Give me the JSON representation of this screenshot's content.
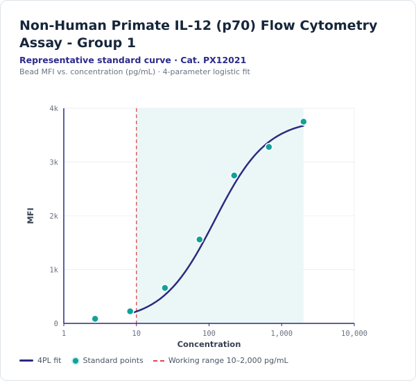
{
  "header": {
    "title": "Non-Human Primate IL-12 (p70) Flow Cytometry Assay - Group 1",
    "subtitle": "Representative standard curve · Cat. PX12021",
    "description": "Bead MFI vs. concentration (pg/mL) · 4-parameter logistic fit"
  },
  "colors": {
    "fit_line": "#2c2a80",
    "points": "#12a19a",
    "working_range_fill": "#e8f6f6",
    "lloq_line": "#d94a4a"
  },
  "chart_data": {
    "type": "scatter",
    "xlabel": "Concentration",
    "ylabel": "MFI",
    "x_scale": "log",
    "xlim": [
      1,
      10000
    ],
    "ylim": [
      0,
      4000
    ],
    "x_ticks": [
      1,
      10,
      100,
      1000,
      10000
    ],
    "x_tick_labels": [
      "1",
      "10",
      "100",
      "1,000",
      "10,000"
    ],
    "y_ticks": [
      0,
      1000,
      2000,
      3000,
      4000
    ],
    "y_tick_labels": [
      "0",
      "1k",
      "2k",
      "3k",
      "4k"
    ],
    "grid": true,
    "legend_position": "bottom-left",
    "series": [
      {
        "name": "Standard points",
        "x": [
          2.7,
          8.2,
          24.7,
          74,
          222,
          667,
          2000
        ],
        "y": [
          85,
          225,
          660,
          1560,
          2750,
          3280,
          3750
        ]
      }
    ],
    "fit": {
      "name": "4PL fit",
      "model": "4PL",
      "x_range": [
        8,
        2000
      ],
      "params": {
        "bottom": 40,
        "top": 3800,
        "ec50": 120,
        "hill": 1.2
      }
    },
    "working_range": {
      "label": "Working range 10–2,000 pg/mL",
      "x": [
        10,
        2000
      ]
    }
  }
}
